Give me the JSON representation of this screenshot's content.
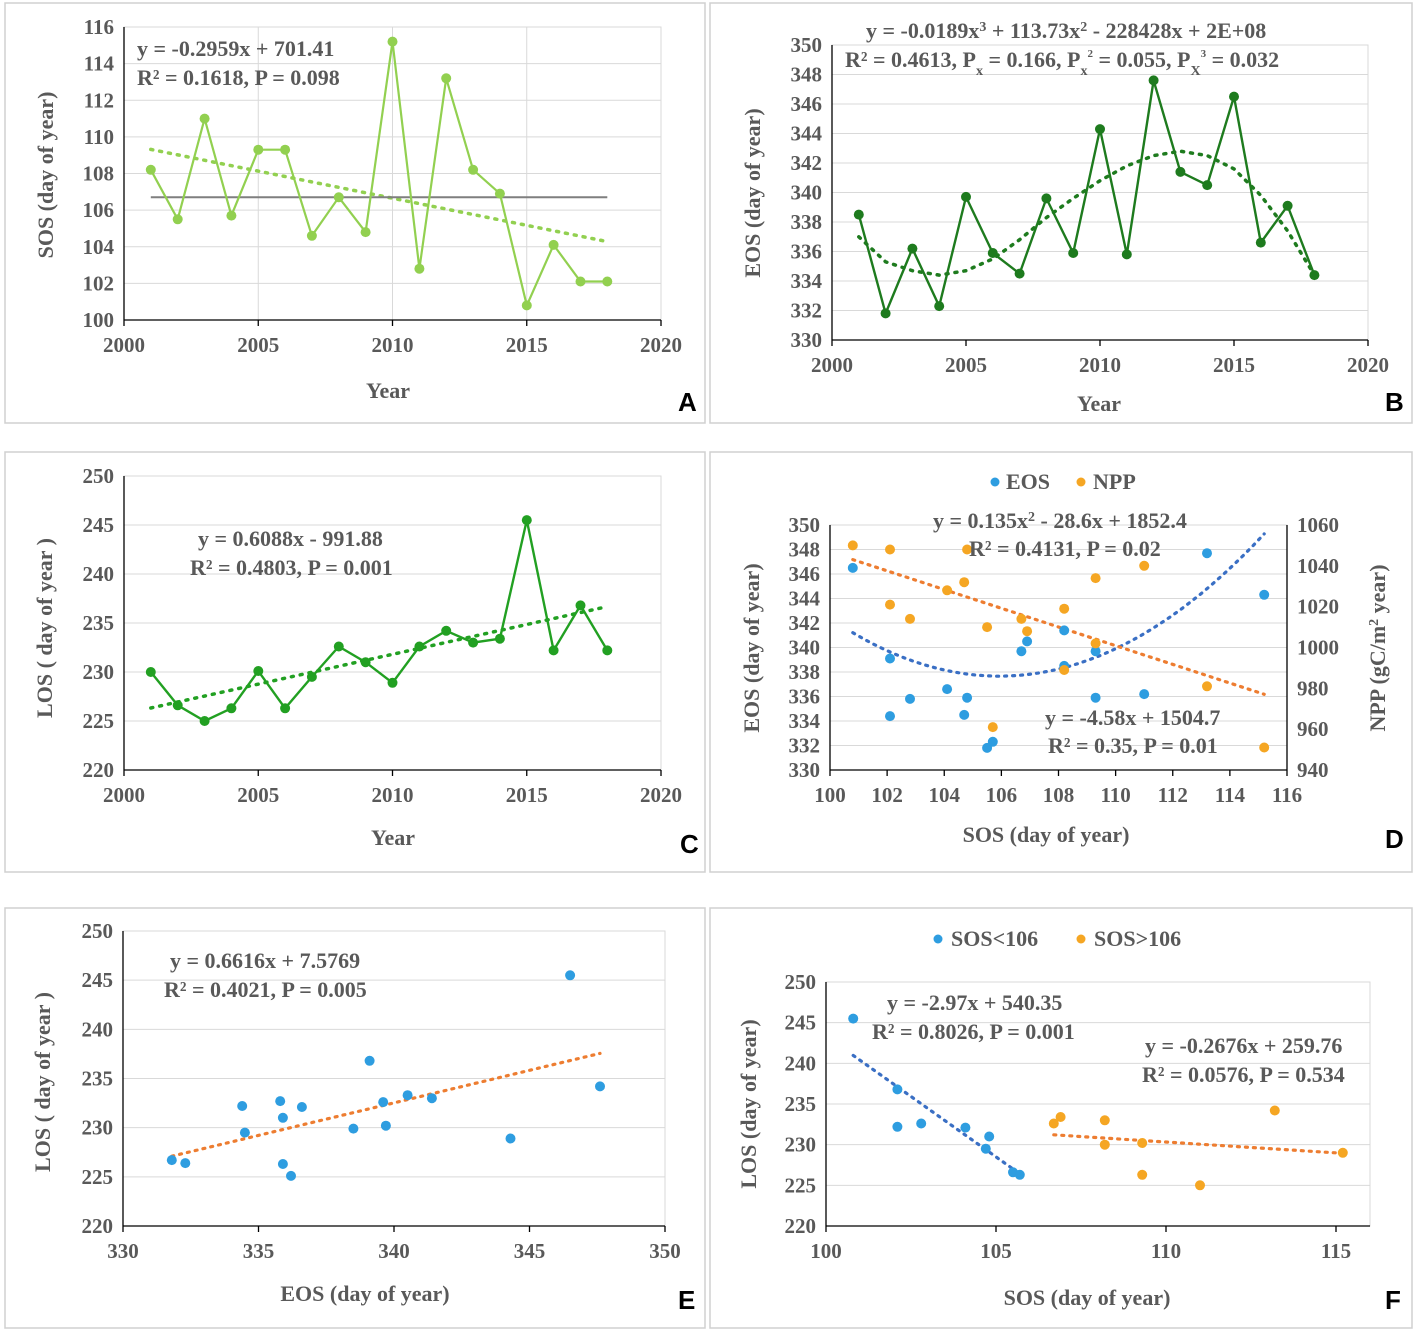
{
  "figure": {
    "colors": {
      "light_green": "#92d050",
      "dark_green": "#1e7b1e",
      "mid_green": "#22a022",
      "blue_dot": "#2e9de0",
      "orange_dot": "#f5a623",
      "blue_line": "#3a6fc4",
      "orange_line": "#ed7d31",
      "mean_line": "#7f7f7f",
      "grid": "#d9d9d9",
      "text": "#595959"
    }
  },
  "chart_data": [
    {
      "id": "A",
      "type": "line",
      "panel_label": "A",
      "xlabel": "Year",
      "ylabel": "SOS (day of year)",
      "xlim": [
        2000,
        2020
      ],
      "xticks": [
        2000,
        2005,
        2010,
        2015,
        2020
      ],
      "ylim": [
        100,
        116
      ],
      "yticks": [
        100,
        102,
        104,
        106,
        108,
        110,
        112,
        114,
        116
      ],
      "series": [
        {
          "name": "SOS",
          "x": [
            2001,
            2002,
            2003,
            2004,
            2005,
            2006,
            2007,
            2008,
            2009,
            2010,
            2011,
            2012,
            2013,
            2014,
            2015,
            2016,
            2017,
            2018
          ],
          "y": [
            108.2,
            105.5,
            111.0,
            105.7,
            109.3,
            109.3,
            104.6,
            106.7,
            104.8,
            115.2,
            102.8,
            113.2,
            108.2,
            106.9,
            100.8,
            104.1,
            102.1,
            102.1
          ]
        }
      ],
      "mean_line": {
        "y": 106.7,
        "x": [
          2001,
          2018
        ]
      },
      "trendline": {
        "kind": "linear",
        "coef": [
          -0.2959,
          701.41
        ],
        "x": [
          2001,
          2018
        ]
      },
      "equations": [
        "y = -0.2959x + 701.41",
        "R² = 0.1618, P = 0.098"
      ]
    },
    {
      "id": "B",
      "type": "line",
      "panel_label": "B",
      "xlabel": "Year",
      "ylabel": "EOS (day of year)",
      "xlim": [
        2000,
        2020
      ],
      "xticks": [
        2000,
        2005,
        2010,
        2015,
        2020
      ],
      "ylim": [
        330,
        350
      ],
      "yticks": [
        330,
        332,
        334,
        336,
        338,
        340,
        342,
        344,
        346,
        348,
        350
      ],
      "series": [
        {
          "name": "EOS",
          "x": [
            2001,
            2002,
            2003,
            2004,
            2005,
            2006,
            2007,
            2008,
            2009,
            2010,
            2011,
            2012,
            2013,
            2014,
            2015,
            2016,
            2017,
            2018
          ],
          "y": [
            338.5,
            331.8,
            336.2,
            332.3,
            339.7,
            335.9,
            334.5,
            339.6,
            335.9,
            344.3,
            335.8,
            347.6,
            341.4,
            340.5,
            346.5,
            336.6,
            339.1,
            334.4
          ]
        }
      ],
      "trendline": {
        "kind": "cubic_points",
        "x": [
          2001,
          2002,
          2003,
          2004,
          2005,
          2006,
          2007,
          2008,
          2009,
          2010,
          2011,
          2012,
          2013,
          2014,
          2015,
          2016,
          2017,
          2018
        ],
        "y": [
          337.0,
          335.3,
          334.7,
          334.4,
          334.7,
          335.5,
          336.8,
          338.3,
          339.6,
          340.8,
          341.8,
          342.5,
          342.8,
          342.5,
          341.6,
          339.8,
          337.4,
          334.4
        ]
      },
      "equation_line1": {
        "a": "y = -0.0189x",
        "a_sup": "3",
        "b": " + 113.73x",
        "b_sup": "2",
        "c": " - 228428x + 2E+08"
      },
      "equation_line2": {
        "a": "R² = 0.4613, P",
        "a_sub": "x",
        "b": " = 0.166, P",
        "b_sub": "x",
        "b_sub_sup": "2",
        "c": " = 0.055, P",
        "c_sub": "X",
        "c_sub_sup": "3",
        "d": " = 0.032"
      }
    },
    {
      "id": "C",
      "type": "line",
      "panel_label": "C",
      "xlabel": "Year",
      "ylabel": "LOS ( day of year )",
      "xlim": [
        2000,
        2020
      ],
      "xticks": [
        2000,
        2005,
        2010,
        2015,
        2020
      ],
      "ylim": [
        220,
        250
      ],
      "yticks": [
        220,
        225,
        230,
        235,
        240,
        245,
        250
      ],
      "series": [
        {
          "name": "LOS",
          "x": [
            2001,
            2002,
            2003,
            2004,
            2005,
            2006,
            2007,
            2008,
            2009,
            2010,
            2011,
            2012,
            2013,
            2014,
            2015,
            2016,
            2017,
            2018
          ],
          "y": [
            230.0,
            226.6,
            225.0,
            226.3,
            230.1,
            226.3,
            229.5,
            232.6,
            231.0,
            228.9,
            232.6,
            234.2,
            233.0,
            233.4,
            245.5,
            232.2,
            236.8,
            232.2
          ]
        }
      ],
      "trendline": {
        "kind": "linear",
        "coef": [
          0.6088,
          -991.88
        ],
        "x": [
          2001,
          2018
        ]
      },
      "equations": [
        "y = 0.6088x - 991.88",
        "R² = 0.4803, P = 0.001"
      ]
    },
    {
      "id": "D",
      "type": "scatter",
      "panel_label": "D",
      "xlabel": "SOS (day of year)",
      "ylabel": "EOS (day of year)",
      "y2label_main": "NPP (gC/m",
      "y2label_sup": "2",
      "y2label_end": " year)",
      "legend": [
        "EOS",
        "NPP"
      ],
      "xlim": [
        100,
        116
      ],
      "xticks": [
        100,
        102,
        104,
        106,
        108,
        110,
        112,
        114,
        116
      ],
      "ylim": [
        330,
        350
      ],
      "yticks": [
        330,
        332,
        334,
        336,
        338,
        340,
        342,
        344,
        346,
        348,
        350
      ],
      "y2lim": [
        940,
        1060
      ],
      "y2ticks": [
        940,
        960,
        980,
        1000,
        1020,
        1040,
        1060
      ],
      "series": [
        {
          "name": "EOS",
          "axis": "left",
          "x": [
            100.8,
            102.1,
            102.1,
            102.8,
            104.1,
            104.7,
            104.8,
            105.5,
            105.7,
            106.7,
            106.9,
            108.2,
            108.2,
            109.3,
            109.3,
            111.0,
            113.2,
            115.2
          ],
          "y": [
            346.5,
            339.1,
            334.4,
            335.8,
            336.6,
            334.5,
            335.9,
            331.8,
            332.3,
            339.7,
            340.5,
            341.4,
            338.5,
            339.7,
            335.9,
            336.2,
            347.7,
            344.3
          ]
        },
        {
          "name": "NPP",
          "axis": "right",
          "x": [
            100.8,
            102.1,
            102.1,
            102.8,
            104.1,
            104.7,
            104.8,
            105.5,
            105.7,
            106.7,
            106.9,
            108.2,
            108.2,
            109.3,
            109.3,
            111.0,
            113.2,
            115.2
          ],
          "y": [
            1050,
            1048,
            1021,
            1014,
            1028,
            1032,
            1048,
            1010,
            961,
            1014,
            1008,
            1019,
            989,
            1034,
            1002,
            1040,
            981,
            951
          ]
        }
      ],
      "trendlines": [
        {
          "kind": "quadratic",
          "axis": "left",
          "coef": [
            0.135,
            -28.6,
            1852.4
          ],
          "x": [
            100.8,
            115.2
          ]
        },
        {
          "kind": "linear",
          "axis": "right",
          "coef": [
            -4.58,
            1504.7
          ],
          "x": [
            100.8,
            115.2
          ]
        }
      ],
      "equations_quadratic": {
        "a": "y = 0.135x",
        "a_sup": "2",
        "b": " - 28.6x + 1852.4",
        "line2": "R² = 0.4131, P = 0.02"
      },
      "equations_linear": [
        "y = -4.58x + 1504.7",
        "R² = 0.35, P = 0.01"
      ]
    },
    {
      "id": "E",
      "type": "scatter",
      "panel_label": "E",
      "xlabel": "EOS (day of year)",
      "ylabel": "LOS ( day of year )",
      "xlim": [
        330,
        350
      ],
      "xticks": [
        330,
        335,
        340,
        345,
        350
      ],
      "ylim": [
        220,
        250
      ],
      "yticks": [
        220,
        225,
        230,
        235,
        240,
        245,
        250
      ],
      "series": [
        {
          "name": "LOS",
          "x": [
            331.8,
            332.3,
            334.4,
            334.5,
            335.8,
            335.9,
            335.9,
            336.2,
            336.6,
            338.5,
            339.1,
            339.6,
            339.7,
            340.5,
            341.4,
            344.3,
            346.5,
            347.6
          ],
          "y": [
            226.7,
            226.4,
            232.2,
            229.5,
            232.7,
            226.3,
            231.0,
            225.1,
            232.1,
            229.9,
            236.8,
            232.6,
            230.2,
            233.3,
            233.0,
            228.9,
            245.5,
            234.2
          ]
        }
      ],
      "trendline": {
        "kind": "linear",
        "coef": [
          0.6616,
          7.5769
        ],
        "x": [
          331.8,
          347.6
        ]
      },
      "equations": [
        "y = 0.6616x + 7.5769",
        "R² = 0.4021, P = 0.005"
      ]
    },
    {
      "id": "F",
      "type": "scatter",
      "panel_label": "F",
      "xlabel": "SOS (day of year)",
      "ylabel": "LOS (day of year)",
      "legend": [
        "SOS<106",
        "SOS>106"
      ],
      "xlim": [
        100,
        116
      ],
      "xticks": [
        100,
        105,
        110,
        115
      ],
      "ylim": [
        220,
        250
      ],
      "yticks": [
        220,
        225,
        230,
        235,
        240,
        245,
        250
      ],
      "series": [
        {
          "name": "SOS<106",
          "x": [
            100.8,
            102.1,
            102.1,
            102.8,
            104.1,
            104.7,
            104.8,
            105.5,
            105.7
          ],
          "y": [
            245.5,
            236.8,
            232.2,
            232.6,
            232.1,
            229.5,
            231.0,
            226.6,
            226.3
          ]
        },
        {
          "name": "SOS>106",
          "x": [
            106.7,
            106.9,
            108.2,
            108.2,
            109.3,
            109.3,
            111.0,
            113.2,
            115.2
          ],
          "y": [
            232.6,
            233.4,
            233.0,
            230.0,
            230.2,
            226.3,
            225.0,
            234.2,
            229.0
          ]
        }
      ],
      "trendlines": [
        {
          "kind": "linear",
          "coef": [
            -2.97,
            540.35
          ],
          "x": [
            100.8,
            105.7
          ]
        },
        {
          "kind": "linear",
          "coef": [
            -0.2676,
            259.76
          ],
          "x": [
            106.7,
            115.2
          ]
        }
      ],
      "equations_left": [
        "y = -2.97x + 540.35",
        "R² = 0.8026, P = 0.001"
      ],
      "equations_right": [
        "y = -0.2676x + 259.76",
        "R² = 0.0576, P = 0.534"
      ]
    }
  ]
}
